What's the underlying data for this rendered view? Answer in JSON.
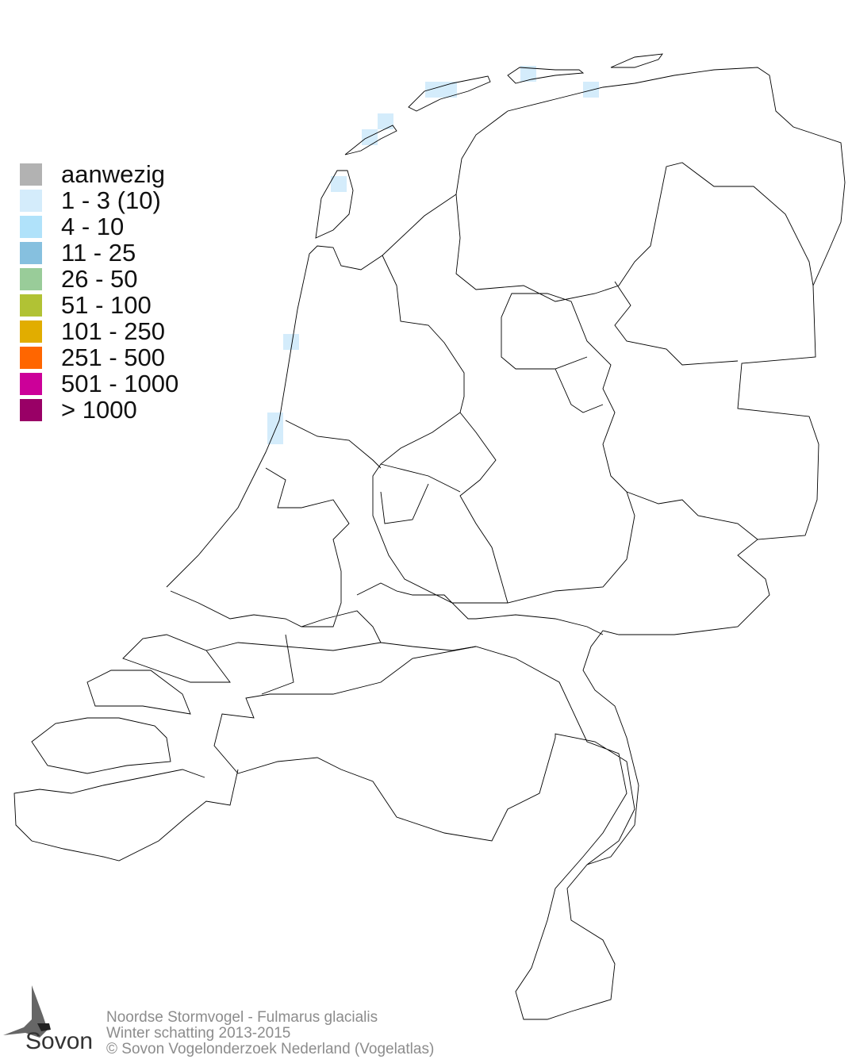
{
  "legend": {
    "items": [
      {
        "label": "aanwezig",
        "color": "#b2b2b2"
      },
      {
        "label": "1 - 3 (10)",
        "color": "#d4ecfb"
      },
      {
        "label": "4 - 10",
        "color": "#b0e2fa"
      },
      {
        "label": "11 - 25",
        "color": "#86c0df"
      },
      {
        "label": "26 - 50",
        "color": "#99cc99"
      },
      {
        "label": "51 - 100",
        "color": "#b1c234"
      },
      {
        "label": "101 - 250",
        "color": "#e1ad00"
      },
      {
        "label": "251 - 500",
        "color": "#ff6600"
      },
      {
        "label": "501 - 1000",
        "color": "#cc0099"
      },
      {
        "label": "> 1000",
        "color": "#990066"
      }
    ]
  },
  "footer": {
    "species": "Noordse Stormvogel - Fulmarus glacialis",
    "season": "Winter schatting 2013-2015",
    "copyright": "© Sovon Vogelonderzoek Nederland (Vogelatlas)"
  },
  "logo": {
    "text": "Sovon"
  },
  "map": {
    "occupied_cell_class": "1 - 3 (10)",
    "outline_color": "#000000"
  }
}
